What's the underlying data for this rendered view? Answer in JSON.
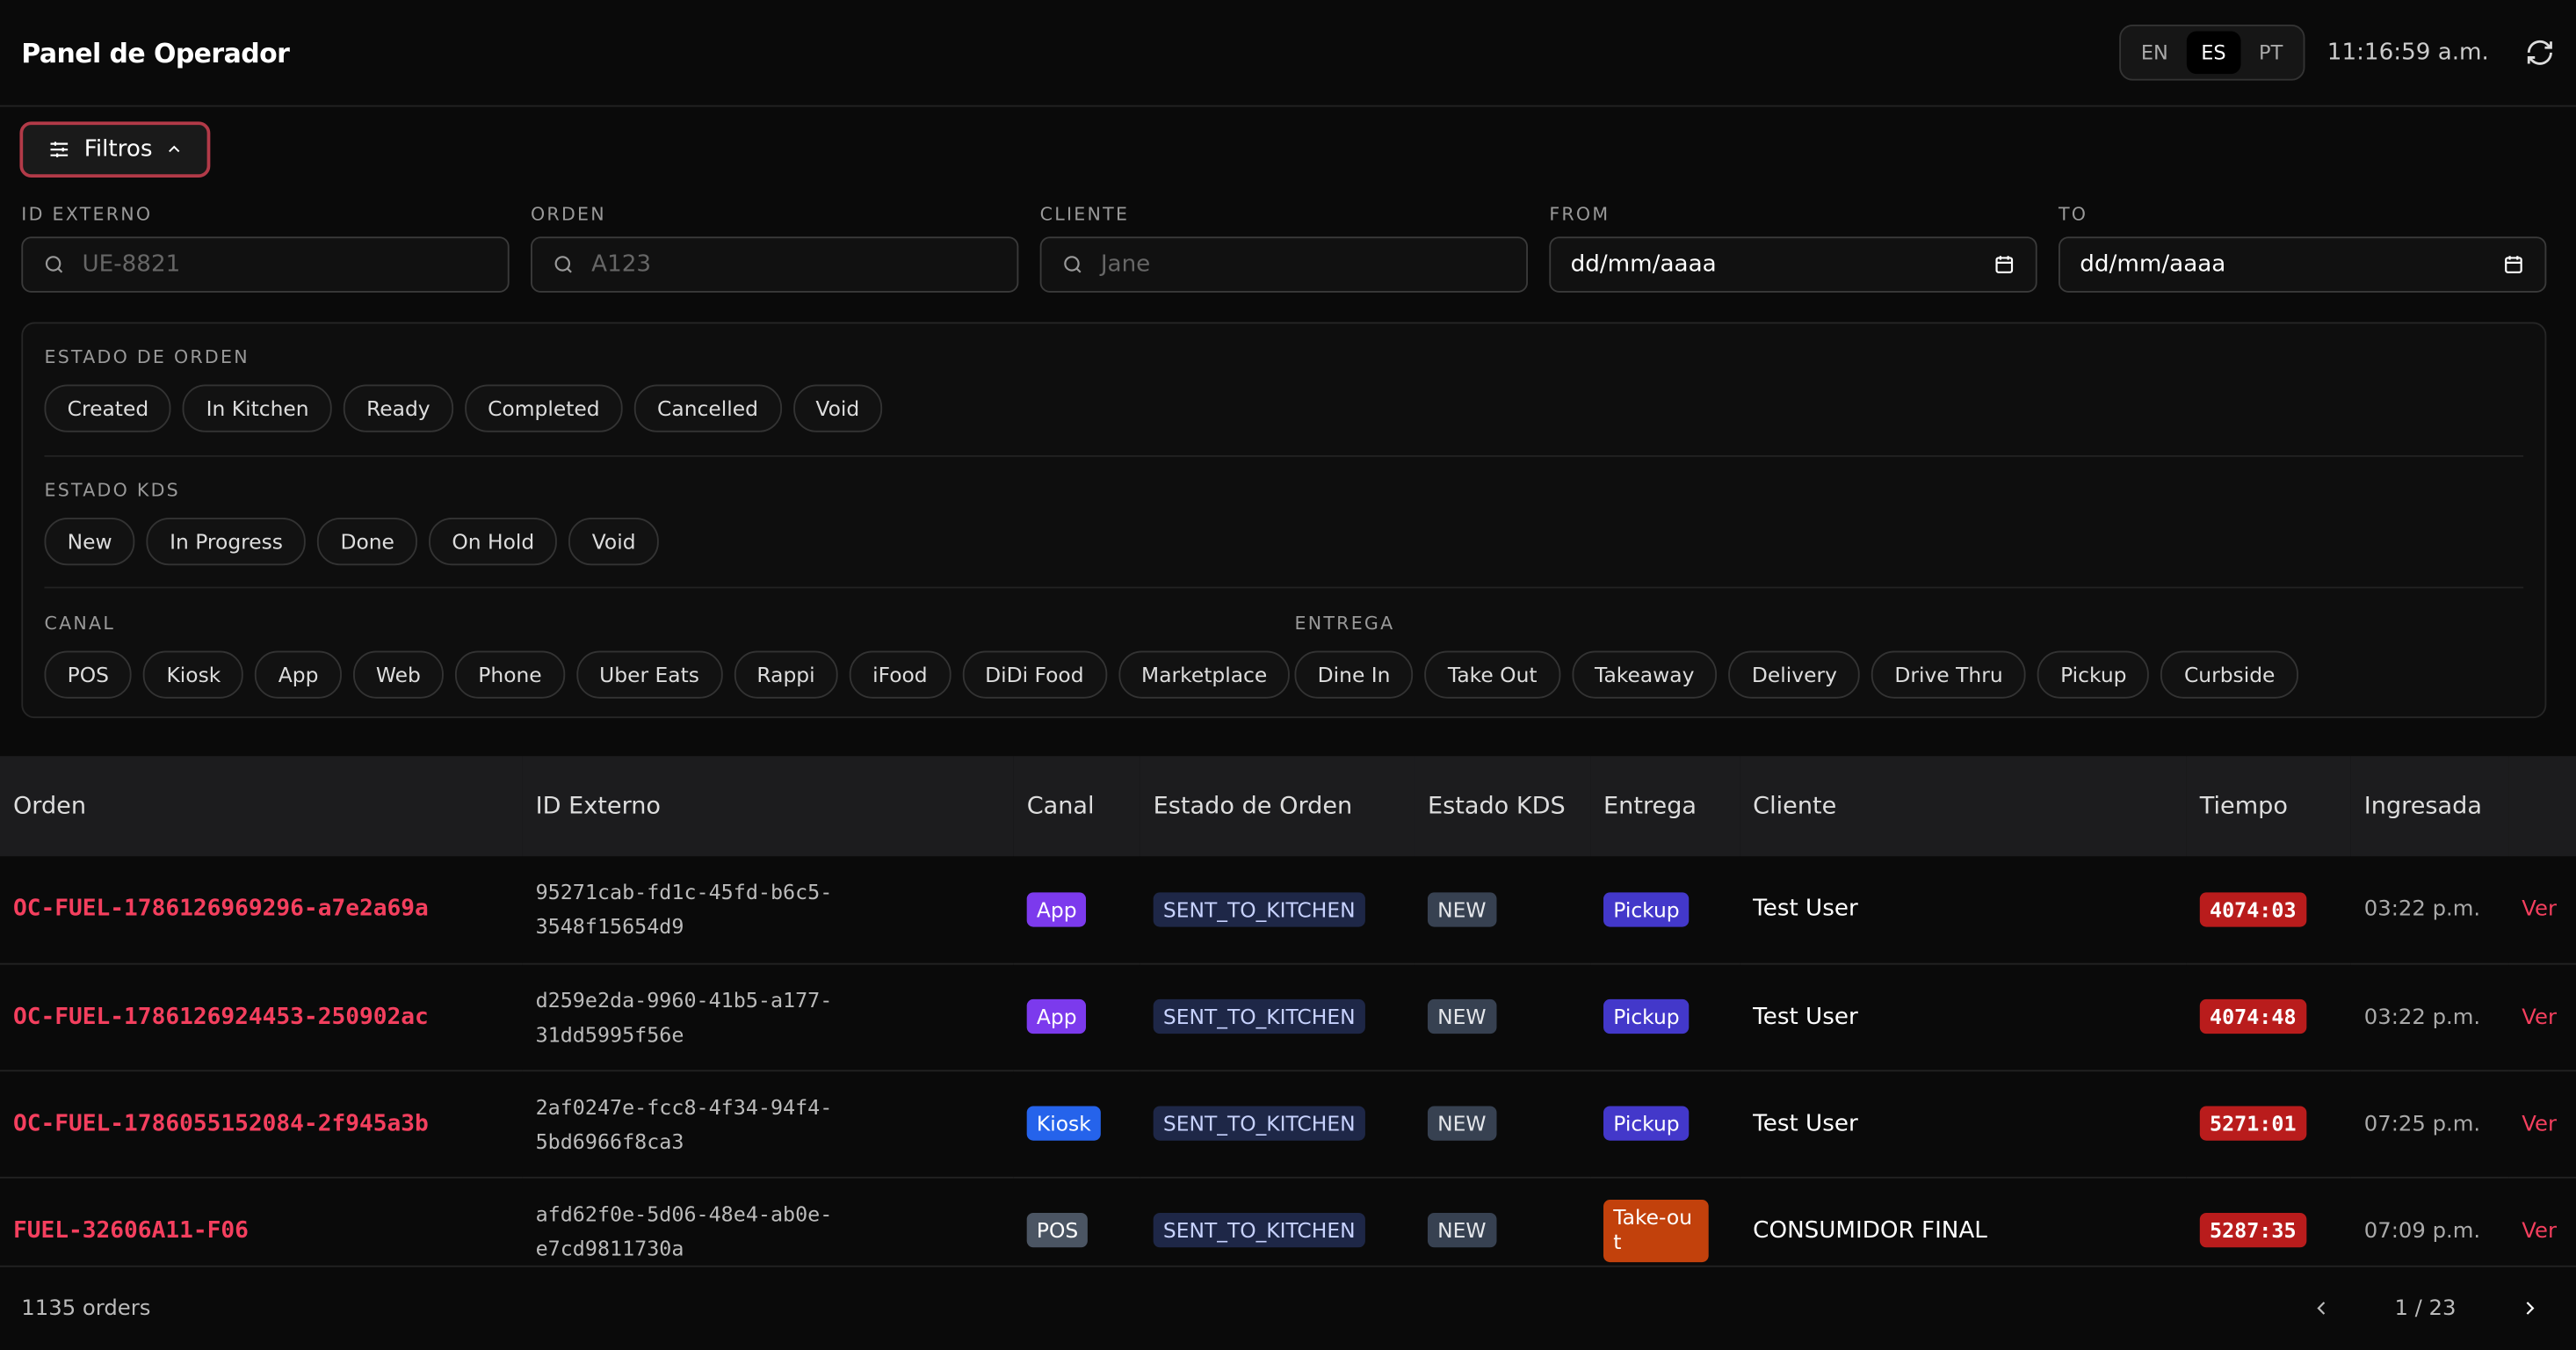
{
  "header": {
    "title": "Panel de Operador",
    "languages": [
      "EN",
      "ES",
      "PT"
    ],
    "active_language": 1,
    "time": "11:16:59 a.m."
  },
  "filters": {
    "button": "Filtros",
    "fields": [
      {
        "label": "ID EXTERNO",
        "placeholder": "UE-8821"
      },
      {
        "label": "ORDEN",
        "placeholder": "A123"
      },
      {
        "label": "CLIENTE",
        "placeholder": "Jane"
      },
      {
        "label": "FROM",
        "value": "dd/mm/aaaa"
      },
      {
        "label": "TO",
        "value": "dd/mm/aaaa"
      }
    ],
    "groups": [
      {
        "label": "ESTADO DE ORDEN",
        "options": [
          "Created",
          "In Kitchen",
          "Ready",
          "Completed",
          "Cancelled",
          "Void"
        ]
      },
      {
        "label": "ESTADO KDS",
        "options": [
          "New",
          "In Progress",
          "Done",
          "On Hold",
          "Void"
        ]
      },
      {
        "label": "CANAL",
        "options": [
          "POS",
          "Kiosk",
          "App",
          "Web",
          "Phone",
          "Uber Eats",
          "Rappi",
          "iFood",
          "DiDi Food",
          "Marketplace"
        ]
      },
      {
        "label": "ENTREGA",
        "options": [
          "Dine In",
          "Take Out",
          "Takeaway",
          "Delivery",
          "Drive Thru",
          "Pickup",
          "Curbside"
        ]
      }
    ]
  },
  "table": {
    "headers": [
      "Orden",
      "ID Externo",
      "Canal",
      "Estado de Orden",
      "Estado KDS",
      "Entrega",
      "Cliente",
      "Tiempo",
      "Ingresada"
    ],
    "rows": [
      {
        "orden": "OC-FUEL-1786126969296-a7e2a69a",
        "id_externo": [
          "95271cab-fd1c-45fd-b6c5-",
          "3548f15654d9"
        ],
        "canal": {
          "text": "App",
          "color": "#7c3aed"
        },
        "estado": "SENT_TO_KITCHEN",
        "kds": "NEW",
        "entrega": {
          "text": "Pickup",
          "color": "#4338ca"
        },
        "cliente": "Test User",
        "tiempo": "4074:03",
        "ingresada": "03:22 p.m.",
        "accion": "Ver"
      },
      {
        "orden": "OC-FUEL-1786126924453-250902ac",
        "id_externo": [
          "d259e2da-9960-41b5-a177-",
          "31dd5995f56e"
        ],
        "canal": {
          "text": "App",
          "color": "#7c3aed"
        },
        "estado": "SENT_TO_KITCHEN",
        "kds": "NEW",
        "entrega": {
          "text": "Pickup",
          "color": "#4338ca"
        },
        "cliente": "Test User",
        "tiempo": "4074:48",
        "ingresada": "03:22 p.m.",
        "accion": "Ver"
      },
      {
        "orden": "OC-FUEL-1786055152084-2f945a3b",
        "id_externo": [
          "2af0247e-fcc8-4f34-94f4-",
          "5bd6966f8ca3"
        ],
        "canal": {
          "text": "Kiosk",
          "color": "#2563eb"
        },
        "estado": "SENT_TO_KITCHEN",
        "kds": "NEW",
        "entrega": {
          "text": "Pickup",
          "color": "#4338ca"
        },
        "cliente": "Test User",
        "tiempo": "5271:01",
        "ingresada": "07:25 p.m.",
        "accion": "Ver"
      },
      {
        "orden": "FUEL-32606A11-F06",
        "id_externo": [
          "afd62f0e-5d06-48e4-ab0e-",
          "e7cd9811730a"
        ],
        "canal": {
          "text": "POS",
          "color": "#4b5563"
        },
        "estado": "SENT_TO_KITCHEN",
        "kds": "NEW",
        "entrega": {
          "text": "Take-out",
          "color": "#c2410c"
        },
        "cliente": "CONSUMIDOR FINAL",
        "tiempo": "5287:35",
        "ingresada": "07:09 p.m.",
        "accion": "Ver"
      }
    ]
  },
  "footer": {
    "count": "1135 orders",
    "page": "1 / 23"
  }
}
